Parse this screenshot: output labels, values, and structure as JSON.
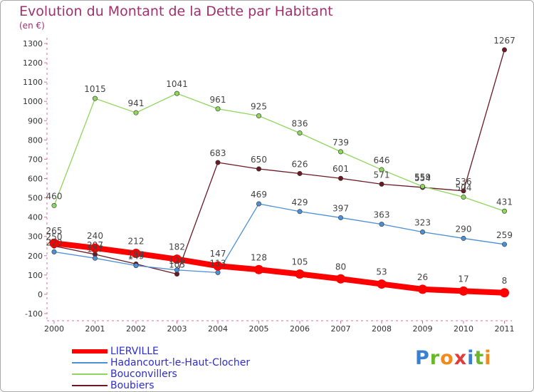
{
  "chart_data": {
    "type": "line",
    "title": "Evolution du Montant de la Dette par Habitant",
    "ylabel": "(en €)",
    "xlabel": "",
    "categories": [
      "2000",
      "2001",
      "2002",
      "2003",
      "2004",
      "2005",
      "2006",
      "2007",
      "2008",
      "2009",
      "2010",
      "2011"
    ],
    "yticks": [
      -100,
      0,
      100,
      200,
      300,
      400,
      500,
      600,
      700,
      800,
      900,
      1000,
      1100,
      1200,
      1300
    ],
    "ylim": [
      -100,
      1300
    ],
    "series": [
      {
        "name": "LIERVILLE",
        "color": "#ff0000",
        "values": [
          265,
          240,
          212,
          182,
          147,
          128,
          105,
          80,
          53,
          26,
          17,
          8
        ],
        "labels": [
          "265",
          "240",
          "212",
          "182",
          "147",
          "128",
          "105",
          "80",
          "53",
          "26",
          "17",
          "8"
        ]
      },
      {
        "name": "Hadancourt-le-Haut-Clocher",
        "color": "#4d8fd6",
        "values": [
          220,
          187,
          149,
          126,
          113,
          469,
          429,
          397,
          363,
          323,
          290,
          259
        ],
        "labels": [
          "220",
          "187",
          "149",
          "126",
          "113",
          "469",
          "429",
          "397",
          "363",
          "323",
          "290",
          "259"
        ]
      },
      {
        "name": "Bouconvillers",
        "color": "#8fd65c",
        "values": [
          460,
          1015,
          941,
          1041,
          961,
          925,
          836,
          739,
          646,
          559,
          504,
          431
        ],
        "labels": [
          "460",
          "1015",
          "941",
          "1041",
          "961",
          "925",
          "836",
          "739",
          "646",
          "559",
          "504",
          "431"
        ]
      },
      {
        "name": "Boubiers",
        "color": "#6b1a24",
        "values": [
          250,
          207,
          157,
          105,
          683,
          650,
          626,
          601,
          571,
          554,
          536,
          1267
        ],
        "labels": [
          "250",
          "207",
          "157",
          "105",
          "683",
          "650",
          "626",
          "601",
          "571",
          "554",
          "536",
          "1267"
        ]
      }
    ],
    "legend": {
      "position": "bottom-left"
    },
    "grid": false
  },
  "brand": {
    "p": "P",
    "r": "r",
    "o": "o",
    "x": "x",
    "i": "i",
    "t": "t",
    "i2": "i"
  }
}
